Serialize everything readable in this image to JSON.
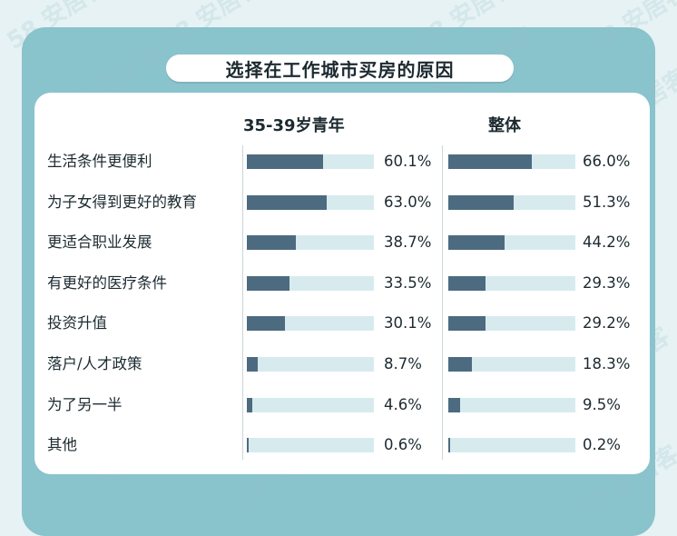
{
  "title": "选择在工作城市买房的原因",
  "watermark": "58 安居客",
  "colors": {
    "frame": "#89c3cc",
    "bar_fill": "#4d6b80",
    "bar_track": "#d7ebef",
    "card": "#ffffff"
  },
  "chart_data": {
    "type": "bar",
    "orientation": "horizontal",
    "title": "选择在工作城市买房的原因",
    "categories": [
      "生活条件更便利",
      "为子女得到更好的教育",
      "更适合职业发展",
      "有更好的医疗条件",
      "投资升值",
      "落户/人才政策",
      "为了另一半",
      "其他"
    ],
    "series": [
      {
        "name": "35-39岁青年",
        "values": [
          60.1,
          63.0,
          38.7,
          33.5,
          30.1,
          8.7,
          4.6,
          0.6
        ],
        "labels": [
          "60.1%",
          "63.0%",
          "38.7%",
          "33.5%",
          "30.1%",
          "8.7%",
          "4.6%",
          "0.6%"
        ]
      },
      {
        "name": "整体",
        "values": [
          66.0,
          51.3,
          44.2,
          29.3,
          29.2,
          18.3,
          9.5,
          0.2
        ],
        "labels": [
          "66.0%",
          "51.3%",
          "44.2%",
          "29.3%",
          "29.2%",
          "18.3%",
          "9.5%",
          "0.2%"
        ]
      }
    ],
    "xlim": [
      0,
      100
    ],
    "unit": "%",
    "grid": false,
    "legend": "column-headers"
  }
}
